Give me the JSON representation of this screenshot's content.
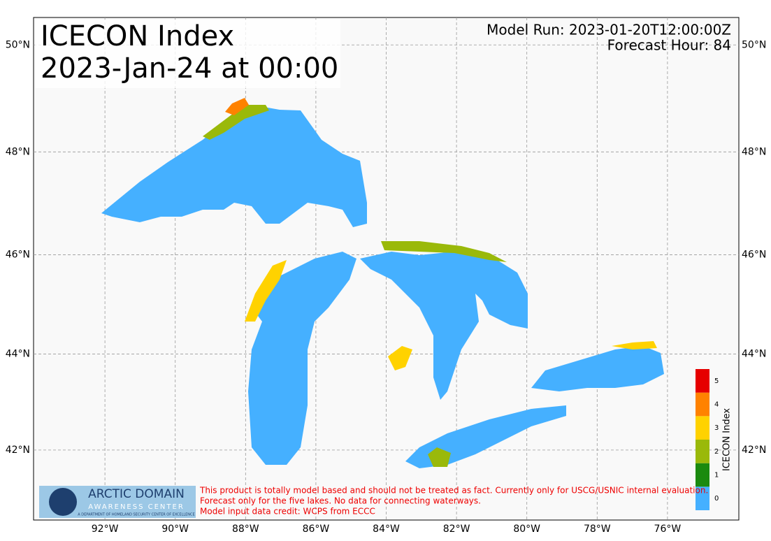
{
  "title_lines": [
    "ICECON Index",
    "2023-Jan-24 at 00:00"
  ],
  "model_run": "Model Run: 2023-01-20T12:00:00Z",
  "forecast_hour": "Forecast Hour: 84",
  "map": {
    "lon_range": [
      -94.03,
      -73.97
    ],
    "lat_range": [
      40.5,
      50.5
    ],
    "lon_ticks": [
      {
        "value": -92,
        "label": "92°W"
      },
      {
        "value": -90,
        "label": "90°W"
      },
      {
        "value": -88,
        "label": "88°W"
      },
      {
        "value": -86,
        "label": "86°W"
      },
      {
        "value": -84,
        "label": "84°W"
      },
      {
        "value": -82,
        "label": "82°W"
      },
      {
        "value": -80,
        "label": "80°W"
      },
      {
        "value": -78,
        "label": "78°W"
      },
      {
        "value": -76,
        "label": "76°W"
      }
    ],
    "lat_ticks": [
      {
        "value": 42,
        "label": "42°N"
      },
      {
        "value": 44,
        "label": "44°N"
      },
      {
        "value": 46,
        "label": "46°N"
      },
      {
        "value": 48,
        "label": "48°N"
      },
      {
        "value": 50,
        "label": "50°N"
      }
    ]
  },
  "colorbar": {
    "label": "ICECON Index",
    "levels": [
      0,
      1,
      2,
      3,
      4,
      5
    ],
    "colors": [
      "#45b0ff",
      "#1a8a0e",
      "#9ab90a",
      "#ffd200",
      "#ff8200",
      "#e60000"
    ]
  },
  "logo": {
    "name": "ARCTIC DOMAIN",
    "subtitle": "AWARENESS CENTER",
    "tagline": "A DEPARTMENT OF HOMELAND SECURITY CENTER OF EXCELLENCE"
  },
  "disclaimer": [
    "This product is totally model based and should not be treated as fact. Currently only for USCG/USNIC internal evaluation.",
    "Forecast only for the five lakes. No data for connecting waterways.",
    "Model input data credit: WCPS from ECCC"
  ]
}
